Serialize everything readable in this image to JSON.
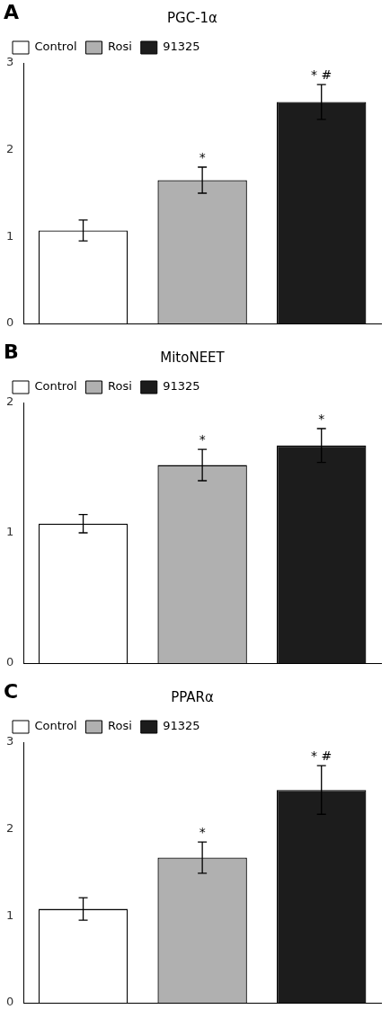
{
  "chart_data": [
    {
      "type": "bar",
      "panel_label": "A",
      "title": "PGC-1α",
      "categories": [
        "Control",
        "Rosi",
        "91325"
      ],
      "values": [
        1.07,
        1.65,
        2.55
      ],
      "errors": [
        0.12,
        0.15,
        0.2
      ],
      "annotations": [
        null,
        "*",
        "* #"
      ],
      "colors": [
        "white",
        "#b0b0b0",
        "#1c1c1c"
      ],
      "ylim": [
        0,
        3
      ],
      "yticks": [
        0,
        1,
        2,
        3
      ],
      "grid": false,
      "legend": "upper left",
      "tick_labels": "y"
    },
    {
      "type": "bar",
      "panel_label": "B",
      "title": "MitoNEET",
      "categories": [
        "Control",
        "Rosi",
        "91325"
      ],
      "values": [
        1.07,
        1.52,
        1.67
      ],
      "errors": [
        0.07,
        0.12,
        0.13
      ],
      "annotations": [
        null,
        "*",
        "*"
      ],
      "colors": [
        "white",
        "#b0b0b0",
        "#1c1c1c"
      ],
      "ylim": [
        0,
        2
      ],
      "yticks": [
        0,
        1,
        2
      ],
      "grid": false,
      "legend": "upper left",
      "tick_labels": "y"
    },
    {
      "type": "bar",
      "panel_label": "C",
      "title": "PPARα",
      "categories": [
        "Control",
        "Rosi",
        "91325"
      ],
      "values": [
        1.08,
        1.67,
        2.45
      ],
      "errors": [
        0.13,
        0.18,
        0.28
      ],
      "annotations": [
        null,
        "*",
        "* #"
      ],
      "colors": [
        "white",
        "#b0b0b0",
        "#1c1c1c"
      ],
      "ylim": [
        0,
        3
      ],
      "yticks": [
        0,
        1,
        2,
        3
      ],
      "grid": false,
      "legend": "upper left",
      "tick_labels": "y"
    }
  ]
}
